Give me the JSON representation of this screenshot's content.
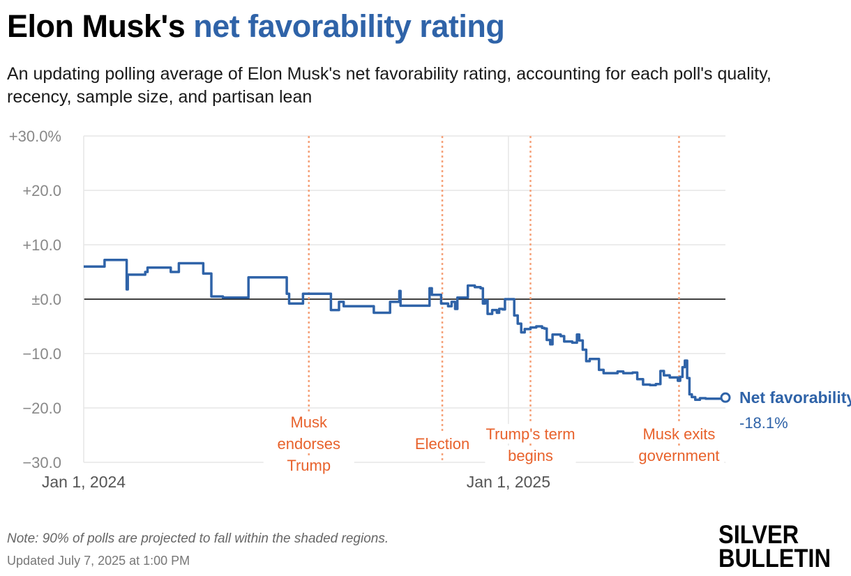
{
  "header": {
    "title_part1": "Elon Musk's",
    "title_part2": "net favorability rating",
    "subtitle": "An updating polling average of Elon Musk's net favorability rating, accounting for each poll's quality, recency, sample size, and partisan lean"
  },
  "footer": {
    "note": "Note: 90% of polls are projected to fall within the shaded regions.",
    "updated": "Updated July 7, 2025 at 1:00 PM",
    "brand_line1": "SILVER",
    "brand_line2": "BULLETIN"
  },
  "colors": {
    "accent": "#2f63a8",
    "event": "#f5a27a",
    "event_text": "#e8622c",
    "grid": "#e6e6e6",
    "zero": "#000000"
  },
  "chart_data": {
    "type": "line",
    "title": "Elon Musk's net favorability rating",
    "x_range": [
      "2024-01-01",
      "2025-07-07"
    ],
    "ylim": [
      -30,
      30
    ],
    "y_ticks": [
      {
        "value": 30,
        "label": "+30.0%"
      },
      {
        "value": 20,
        "label": "+20.0"
      },
      {
        "value": 10,
        "label": "+10.0"
      },
      {
        "value": 0,
        "label": "±0.0"
      },
      {
        "value": -10,
        "label": "−10.0"
      },
      {
        "value": -20,
        "label": "−20.0"
      },
      {
        "value": -30,
        "label": "−30.0"
      }
    ],
    "x_ticks": [
      {
        "date": "2024-01-01",
        "label": "Jan 1, 2024"
      },
      {
        "date": "2025-01-01",
        "label": "Jan 1, 2025"
      }
    ],
    "grid": true,
    "events": [
      {
        "date": "2024-07-13",
        "label": [
          "Musk",
          "endorses",
          "Trump"
        ]
      },
      {
        "date": "2024-11-05",
        "label": [
          "Election"
        ]
      },
      {
        "date": "2025-01-20",
        "label": [
          "Trump's term",
          "begins"
        ]
      },
      {
        "date": "2025-05-28",
        "label": [
          "Musk exits",
          "government"
        ]
      }
    ],
    "series": [
      {
        "name": "Net favorability",
        "last_value_label": "-18.1%",
        "points": [
          [
            "2024-01-01",
            6.0
          ],
          [
            "2024-01-18",
            6.0
          ],
          [
            "2024-01-19",
            7.2
          ],
          [
            "2024-02-05",
            7.2
          ],
          [
            "2024-02-07",
            1.8
          ],
          [
            "2024-02-08",
            4.5
          ],
          [
            "2024-02-20",
            4.5
          ],
          [
            "2024-02-23",
            5.0
          ],
          [
            "2024-02-25",
            5.8
          ],
          [
            "2024-03-15",
            5.8
          ],
          [
            "2024-03-16",
            5.0
          ],
          [
            "2024-03-20",
            5.0
          ],
          [
            "2024-03-23",
            6.6
          ],
          [
            "2024-04-10",
            6.6
          ],
          [
            "2024-04-13",
            4.7
          ],
          [
            "2024-04-18",
            4.7
          ],
          [
            "2024-04-20",
            0.5
          ],
          [
            "2024-04-28",
            0.5
          ],
          [
            "2024-04-30",
            0.3
          ],
          [
            "2024-05-20",
            0.3
          ],
          [
            "2024-05-22",
            4.0
          ],
          [
            "2024-06-20",
            4.0
          ],
          [
            "2024-06-24",
            1.0
          ],
          [
            "2024-06-26",
            -0.8
          ],
          [
            "2024-07-06",
            -0.8
          ],
          [
            "2024-07-08",
            1.0
          ],
          [
            "2024-07-30",
            1.0
          ],
          [
            "2024-08-01",
            -2.0
          ],
          [
            "2024-08-06",
            -2.0
          ],
          [
            "2024-08-08",
            -0.5
          ],
          [
            "2024-08-12",
            -1.3
          ],
          [
            "2024-09-05",
            -1.3
          ],
          [
            "2024-09-07",
            -2.5
          ],
          [
            "2024-09-19",
            -2.5
          ],
          [
            "2024-09-21",
            -0.5
          ],
          [
            "2024-09-27",
            -0.5
          ],
          [
            "2024-09-29",
            1.5
          ],
          [
            "2024-09-30",
            -1.2
          ],
          [
            "2024-10-24",
            -1.2
          ],
          [
            "2024-10-25",
            2.0
          ],
          [
            "2024-10-27",
            0.8
          ],
          [
            "2024-11-02",
            0.8
          ],
          [
            "2024-11-04",
            -0.8
          ],
          [
            "2024-11-10",
            -1.3
          ],
          [
            "2024-11-13",
            -0.5
          ],
          [
            "2024-11-16",
            -1.8
          ],
          [
            "2024-11-18",
            0.3
          ],
          [
            "2024-11-26",
            0.3
          ],
          [
            "2024-11-27",
            2.5
          ],
          [
            "2024-12-03",
            2.2
          ],
          [
            "2024-12-08",
            2.0
          ],
          [
            "2024-12-10",
            -0.8
          ],
          [
            "2024-12-12",
            -0.2
          ],
          [
            "2024-12-14",
            -2.7
          ],
          [
            "2024-12-18",
            -2.0
          ],
          [
            "2024-12-22",
            -2.5
          ],
          [
            "2024-12-24",
            -1.8
          ],
          [
            "2024-12-27",
            -1.9
          ],
          [
            "2024-12-29",
            0.0
          ],
          [
            "2025-01-03",
            0.0
          ],
          [
            "2025-01-06",
            -3.0
          ],
          [
            "2025-01-09",
            -4.5
          ],
          [
            "2025-01-12",
            -6.1
          ],
          [
            "2025-01-15",
            -5.5
          ],
          [
            "2025-01-20",
            -5.2
          ],
          [
            "2025-01-25",
            -5.0
          ],
          [
            "2025-01-30",
            -5.3
          ],
          [
            "2025-02-01",
            -5.4
          ],
          [
            "2025-02-03",
            -7.5
          ],
          [
            "2025-02-06",
            -8.3
          ],
          [
            "2025-02-08",
            -6.5
          ],
          [
            "2025-02-15",
            -6.8
          ],
          [
            "2025-02-18",
            -7.8
          ],
          [
            "2025-02-25",
            -8.0
          ],
          [
            "2025-03-01",
            -6.5
          ],
          [
            "2025-03-03",
            -7.6
          ],
          [
            "2025-03-06",
            -9.3
          ],
          [
            "2025-03-09",
            -11.4
          ],
          [
            "2025-03-12",
            -11.0
          ],
          [
            "2025-03-20",
            -13.0
          ],
          [
            "2025-03-24",
            -13.6
          ],
          [
            "2025-04-05",
            -13.3
          ],
          [
            "2025-04-10",
            -13.6
          ],
          [
            "2025-04-18",
            -13.5
          ],
          [
            "2025-04-22",
            -14.7
          ],
          [
            "2025-04-27",
            -15.7
          ],
          [
            "2025-05-03",
            -15.8
          ],
          [
            "2025-05-08",
            -15.6
          ],
          [
            "2025-05-12",
            -13.2
          ],
          [
            "2025-05-15",
            -14.0
          ],
          [
            "2025-05-20",
            -14.4
          ],
          [
            "2025-05-27",
            -15.0
          ],
          [
            "2025-05-29",
            -14.3
          ],
          [
            "2025-05-31",
            -12.5
          ],
          [
            "2025-06-02",
            -11.3
          ],
          [
            "2025-06-04",
            -14.5
          ],
          [
            "2025-06-06",
            -17.5
          ],
          [
            "2025-06-08",
            -18.0
          ],
          [
            "2025-06-11",
            -18.5
          ],
          [
            "2025-06-15",
            -18.2
          ],
          [
            "2025-06-20",
            -18.3
          ],
          [
            "2025-07-07",
            -18.1
          ]
        ]
      }
    ]
  }
}
